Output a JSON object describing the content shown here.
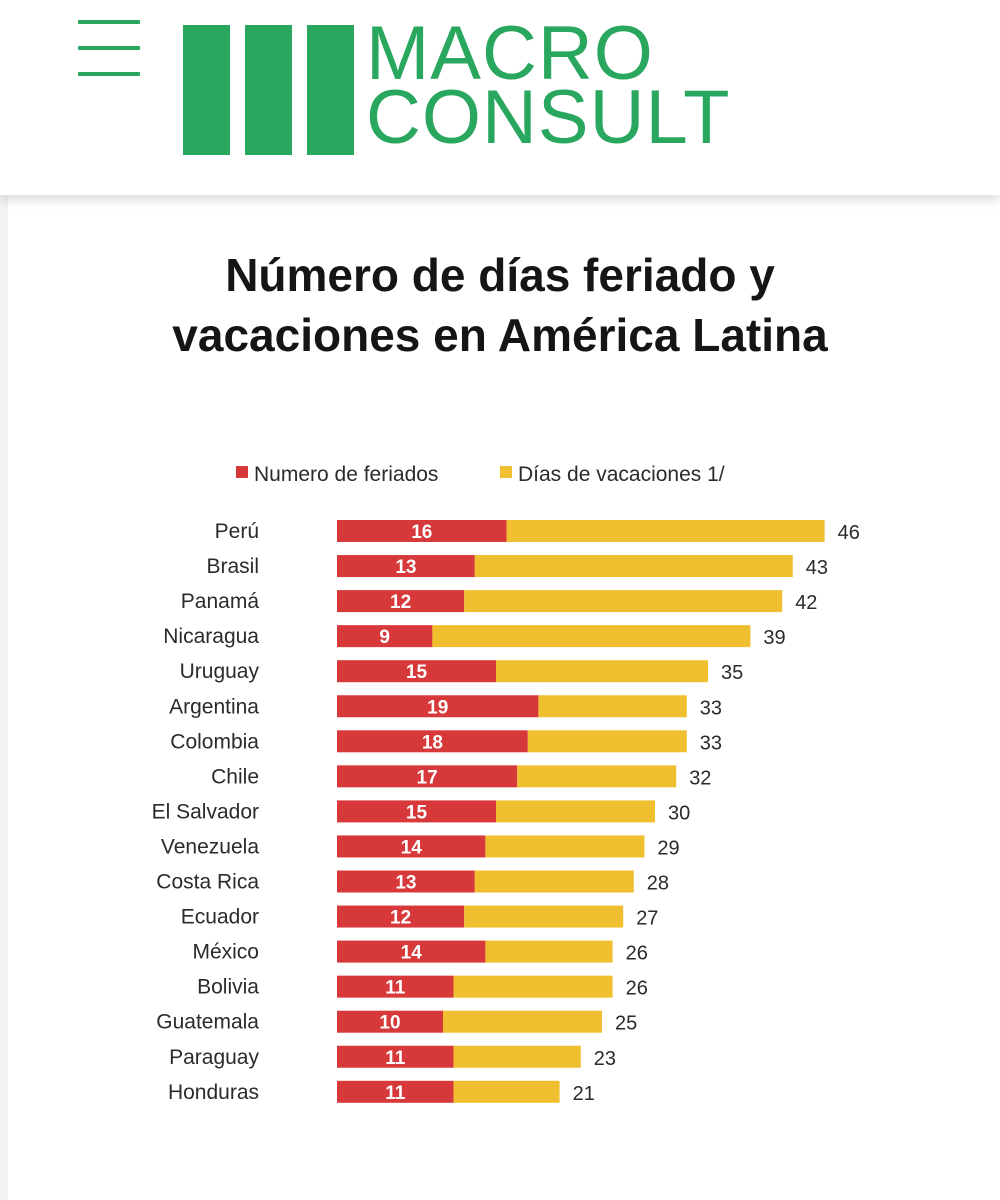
{
  "header": {
    "menu_icon": "hamburger-menu-icon",
    "logo_line1": "MACRO",
    "logo_line2": "CONSULT",
    "brand_color": "#2aa75f"
  },
  "chart_data": {
    "type": "bar",
    "orientation": "horizontal",
    "stacked": true,
    "title_line1": "Número de días feriado y",
    "title_line2": "vacaciones en América Latina",
    "legend_position": "top",
    "grid": false,
    "categories": [
      "Perú",
      "Brasil",
      "Panamá",
      "Nicaragua",
      "Uruguay",
      "Argentina",
      "Colombia",
      "Chile",
      "El Salvador",
      "Venezuela",
      "Costa Rica",
      "Ecuador",
      "México",
      "Bolivia",
      "Guatemala",
      "Paraguay",
      "Honduras"
    ],
    "series": [
      {
        "name": "Numero de feriados",
        "color": "#d7393a",
        "values": [
          16,
          13,
          12,
          9,
          15,
          19,
          18,
          17,
          15,
          14,
          13,
          12,
          14,
          11,
          10,
          11,
          11
        ]
      },
      {
        "name": "Días de vacaciones 1/",
        "color": "#f0bf30",
        "values": [
          30,
          30,
          30,
          30,
          20,
          14,
          15,
          15,
          15,
          15,
          15,
          15,
          12,
          15,
          15,
          12,
          10
        ]
      }
    ],
    "totals": [
      46,
      43,
      42,
      39,
      35,
      33,
      33,
      32,
      30,
      29,
      28,
      27,
      26,
      26,
      25,
      23,
      21
    ]
  }
}
